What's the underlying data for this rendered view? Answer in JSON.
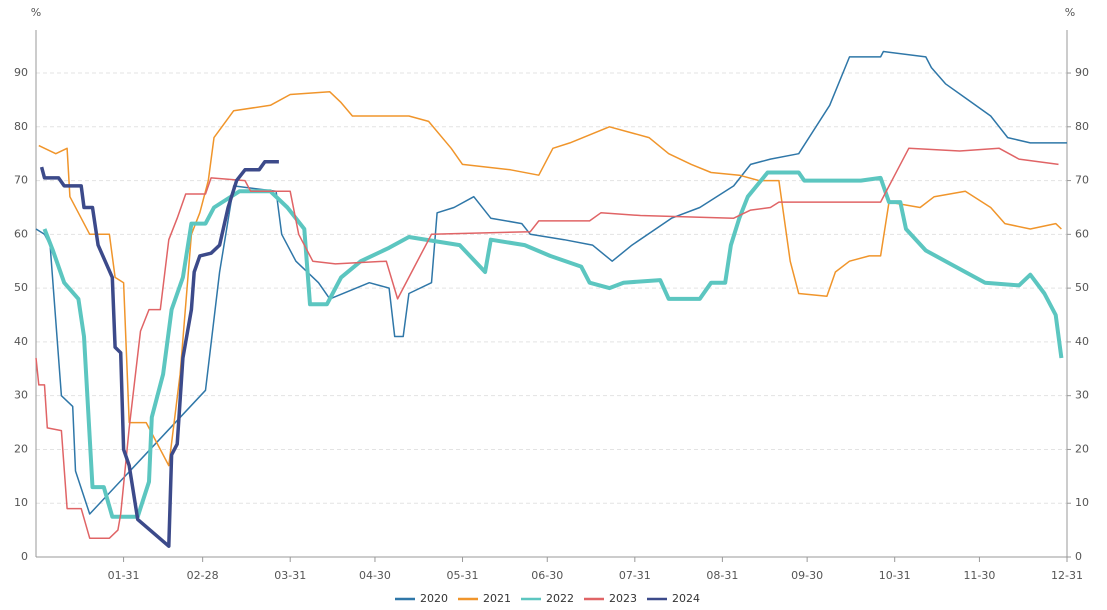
{
  "chart_data": {
    "type": "line",
    "y_unit": "%",
    "y2_unit": "%",
    "xlim": [
      0,
      365
    ],
    "xticks": [
      {
        "value": 31,
        "label": "01-31"
      },
      {
        "value": 59,
        "label": "02-28"
      },
      {
        "value": 90,
        "label": "03-31"
      },
      {
        "value": 120,
        "label": "04-30"
      },
      {
        "value": 151,
        "label": "05-31"
      },
      {
        "value": 181,
        "label": "06-30"
      },
      {
        "value": 212,
        "label": "07-31"
      },
      {
        "value": 243,
        "label": "08-31"
      },
      {
        "value": 273,
        "label": "09-30"
      },
      {
        "value": 304,
        "label": "10-31"
      },
      {
        "value": 334,
        "label": "11-30"
      },
      {
        "value": 365,
        "label": "12-31"
      }
    ],
    "ylim": [
      0,
      98
    ],
    "yticks": [
      0,
      10,
      20,
      30,
      40,
      50,
      60,
      70,
      80,
      90
    ],
    "y2lim": [
      0,
      98
    ],
    "y2ticks": [
      0,
      10,
      20,
      30,
      40,
      50,
      60,
      70,
      80,
      90
    ],
    "grid": true,
    "series": [
      {
        "name": "2020",
        "color": "#2f77a8",
        "width": 1.5,
        "x": [
          0,
          3,
          5,
          9,
          13,
          14,
          19,
          60,
          65,
          70,
          85,
          87,
          92,
          100,
          104,
          118,
          125,
          127,
          130,
          132,
          140,
          142,
          148,
          155,
          161,
          172,
          175,
          187,
          197,
          204,
          211,
          225,
          235,
          247,
          253,
          260,
          270,
          281,
          288,
          299,
          300,
          315,
          317,
          322,
          330,
          338,
          344,
          352,
          365
        ],
        "values": [
          61,
          60,
          58,
          30,
          28,
          16,
          8,
          31,
          53,
          69,
          68,
          60,
          55,
          51,
          48,
          51,
          50,
          41,
          41,
          49,
          51,
          64,
          65,
          67,
          63,
          62,
          60,
          59,
          58,
          55,
          58,
          63,
          65,
          69,
          73,
          74,
          75,
          84,
          93,
          93,
          94,
          93,
          91,
          88,
          85,
          82,
          78,
          77,
          77
        ]
      },
      {
        "name": "2021",
        "color": "#f0952b",
        "width": 1.5,
        "x": [
          1,
          7,
          11,
          12,
          19,
          26,
          28,
          31,
          33,
          39,
          47,
          51,
          55,
          58,
          61,
          63,
          70,
          83,
          90,
          104,
          108,
          112,
          132,
          139,
          147,
          151,
          168,
          178,
          183,
          189,
          203,
          217,
          224,
          232,
          239,
          249,
          256,
          263,
          267,
          270,
          280,
          283,
          288,
          295,
          299,
          302,
          313,
          318,
          329,
          338,
          343,
          352,
          361,
          363
        ],
        "values": [
          76.5,
          75,
          76,
          67,
          60,
          60,
          52,
          51,
          25,
          25,
          17,
          34,
          60,
          64,
          70,
          78,
          83,
          84,
          86,
          86.5,
          84.5,
          82,
          82,
          81,
          76,
          73,
          72,
          71,
          76,
          77,
          80,
          78,
          75,
          73,
          71.5,
          71,
          70,
          70,
          55,
          49,
          48.5,
          53,
          55,
          56,
          56,
          66,
          65,
          67,
          68,
          65,
          62,
          61,
          62,
          61
        ]
      },
      {
        "name": "2022",
        "color": "#5cc6c0",
        "width": 4,
        "x": [
          3,
          6,
          10,
          15,
          17,
          20,
          24,
          27,
          36,
          40,
          41,
          45,
          48,
          52,
          55,
          60,
          63,
          72,
          83,
          89,
          95,
          97,
          103,
          108,
          115,
          125,
          132,
          150,
          159,
          161,
          173,
          182,
          193,
          196,
          203,
          208,
          221,
          224,
          235,
          239,
          244,
          246,
          249,
          252,
          259,
          270,
          272,
          292,
          299,
          302,
          306,
          308,
          315,
          322,
          329,
          336,
          348,
          352,
          357,
          361,
          363
        ],
        "values": [
          61,
          57,
          51,
          48,
          41,
          13,
          13,
          7.5,
          7.5,
          14,
          26,
          34,
          46,
          52,
          62,
          62,
          65,
          68,
          68,
          65,
          61,
          47,
          47,
          52,
          55,
          57.5,
          59.5,
          58,
          53,
          59,
          58,
          56,
          54,
          51,
          50,
          51,
          51.5,
          48,
          48,
          51,
          51,
          58,
          63,
          67,
          71.5,
          71.5,
          70,
          70,
          70.5,
          66,
          66,
          61,
          57,
          55,
          53,
          51,
          50.5,
          52.5,
          49,
          45,
          37
        ]
      },
      {
        "name": "2023",
        "color": "#e06466",
        "width": 1.5,
        "x": [
          0,
          1,
          3,
          4,
          9,
          11,
          16,
          19,
          26,
          29,
          30,
          33,
          37,
          40,
          44,
          47,
          50,
          53,
          60,
          62,
          74,
          76,
          90,
          93,
          98,
          106,
          124,
          128,
          134,
          140,
          175,
          178,
          196,
          200,
          214,
          247,
          253,
          260,
          263,
          299,
          304,
          309,
          327,
          341,
          348,
          362
        ],
        "values": [
          37,
          32,
          32,
          24,
          23.5,
          9,
          9,
          3.5,
          3.5,
          5,
          8,
          24,
          42,
          46,
          46,
          59,
          63,
          67.5,
          67.5,
          70.5,
          70,
          68,
          68,
          60,
          55,
          54.5,
          55,
          48,
          54,
          60,
          60.5,
          62.5,
          62.5,
          64,
          63.5,
          63,
          64.5,
          65,
          66,
          66,
          71,
          76,
          75.5,
          76,
          74,
          73
        ]
      },
      {
        "name": "2024",
        "color": "#3c4a8a",
        "width": 3.5,
        "x": [
          2,
          3,
          8,
          10,
          16,
          17,
          20,
          22,
          27,
          28,
          30,
          31,
          33,
          36,
          47,
          48,
          50,
          52,
          55,
          56,
          58,
          62,
          65,
          68,
          71,
          74,
          79,
          81,
          86
        ],
        "values": [
          72.5,
          70.5,
          70.5,
          69,
          69,
          65,
          65,
          58,
          52,
          39,
          38,
          20,
          17,
          7,
          2,
          19,
          21,
          37,
          46,
          53,
          56,
          56.5,
          58,
          65,
          70,
          72,
          72,
          73.5,
          73.5
        ]
      }
    ]
  }
}
